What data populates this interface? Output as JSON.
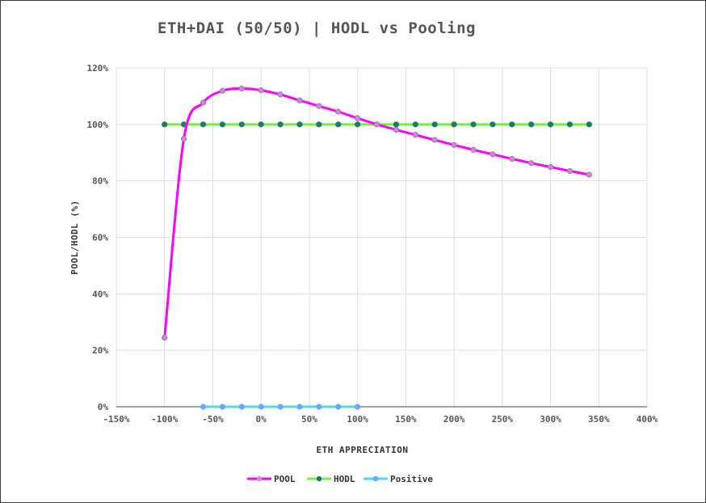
{
  "chart_data": {
    "type": "line",
    "title": "ETH+DAI (50/50) | HODL vs Pooling",
    "xlabel": "ETH APPRECIATION",
    "ylabel": "POOL/HODL (%)",
    "xlim": [
      -150,
      400
    ],
    "ylim": [
      0,
      120
    ],
    "x_ticks": [
      -150,
      -100,
      -50,
      0,
      50,
      100,
      150,
      200,
      250,
      300,
      350,
      400
    ],
    "y_ticks": [
      0,
      20,
      40,
      60,
      80,
      100,
      120
    ],
    "x_tick_labels": [
      "-150%",
      "-100%",
      "-50%",
      "0%",
      "50%",
      "100%",
      "150%",
      "200%",
      "250%",
      "300%",
      "350%",
      "400%"
    ],
    "y_tick_labels": [
      "0%",
      "20%",
      "40%",
      "60%",
      "80%",
      "100%",
      "120%"
    ],
    "grid": true,
    "legend_position": "bottom",
    "series": [
      {
        "name": "POOL",
        "color": "#ff00ff",
        "marker_color": "#c98ad4",
        "smooth": true,
        "x": [
          -100,
          -80,
          -60,
          -40,
          -20,
          0,
          20,
          40,
          60,
          80,
          100,
          120,
          140,
          160,
          180,
          200,
          220,
          240,
          260,
          280,
          300,
          320,
          340
        ],
        "y": [
          24.5,
          94.9,
          107.7,
          111.9,
          112.7,
          112.1,
          110.6,
          108.5,
          106.5,
          104.5,
          102.2,
          100.0,
          98.1,
          96.3,
          94.5,
          92.7,
          91.0,
          89.4,
          87.8,
          86.3,
          84.9,
          83.5,
          82.2
        ]
      },
      {
        "name": "HODL",
        "color": "#77ee44",
        "marker_color": "#1f7a6a",
        "smooth": false,
        "x": [
          -100,
          -80,
          -60,
          -40,
          -20,
          0,
          20,
          40,
          60,
          80,
          100,
          120,
          140,
          160,
          180,
          200,
          220,
          240,
          260,
          280,
          300,
          320,
          340
        ],
        "y": [
          100,
          100,
          100,
          100,
          100,
          100,
          100,
          100,
          100,
          100,
          100,
          100,
          100,
          100,
          100,
          100,
          100,
          100,
          100,
          100,
          100,
          100,
          100
        ]
      },
      {
        "name": "Positive",
        "color": "#44ddee",
        "marker_color": "#66aaff",
        "smooth": false,
        "x": [
          -60,
          -40,
          -20,
          0,
          20,
          40,
          60,
          80,
          100
        ],
        "y": [
          0,
          0,
          0,
          0,
          0,
          0,
          0,
          0,
          0
        ]
      }
    ]
  }
}
